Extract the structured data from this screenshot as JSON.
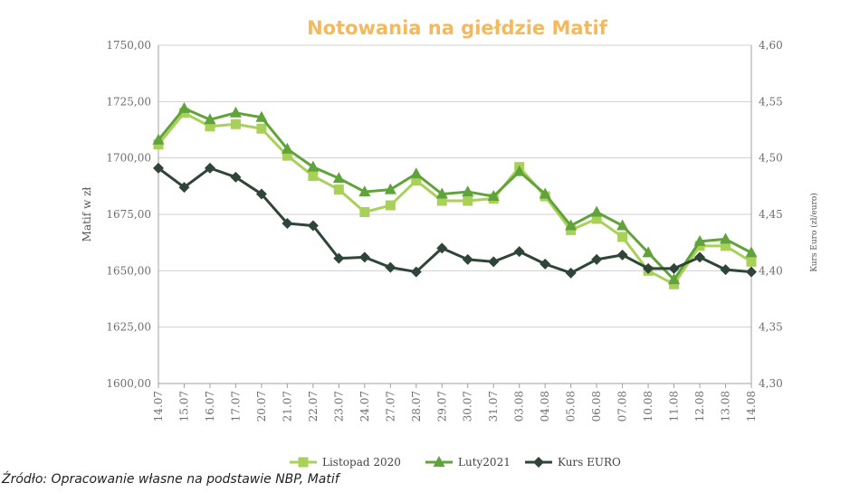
{
  "chart_data": {
    "type": "line",
    "title": "Notowania na giełdzie Matif",
    "ylabel": "Matif w zł",
    "y2label": "Kurs Euro (zł/euro)",
    "ylim": [
      1600,
      1750
    ],
    "y2lim": [
      4.3,
      4.6
    ],
    "yticks": [
      "1600,00",
      "1625,00",
      "1650,00",
      "1675,00",
      "1700,00",
      "1725,00",
      "1750,00"
    ],
    "y2ticks": [
      "4,30",
      "4,35",
      "4,40",
      "4,45",
      "4,50",
      "4,55",
      "4,60"
    ],
    "categories": [
      "14.07",
      "15.07",
      "16.07",
      "17.07",
      "20.07",
      "21.07",
      "22.07",
      "23.07",
      "24.07",
      "27.07",
      "28.07",
      "29.07",
      "30.07",
      "31.07",
      "03.08",
      "04.08",
      "05.08",
      "06.08",
      "07.08",
      "10.08",
      "11.08",
      "12.08",
      "13.08",
      "14.08"
    ],
    "series": [
      {
        "name": "Listopad 2020",
        "axis": "left",
        "color": "#a9d15a",
        "marker": "square",
        "values": [
          1706,
          1720,
          1714,
          1715,
          1713,
          1701,
          1692,
          1686,
          1676,
          1679,
          1690,
          1681,
          1681,
          1682,
          1696,
          1683,
          1668,
          1673,
          1665,
          1650,
          1644,
          1661,
          1661,
          1654
        ]
      },
      {
        "name": "Luty2021",
        "axis": "left",
        "color": "#5fa33a",
        "marker": "triangle",
        "values": [
          1708,
          1722,
          1717,
          1720,
          1718,
          1704,
          1696,
          1691,
          1685,
          1686,
          1693,
          1684,
          1685,
          1683,
          1694,
          1684,
          1670,
          1676,
          1670,
          1658,
          1646,
          1663,
          1664,
          1658
        ]
      },
      {
        "name": "Kurs EURO",
        "axis": "right",
        "color": "#2f4538",
        "marker": "diamond",
        "values": [
          4.491,
          4.474,
          4.491,
          4.483,
          4.468,
          4.442,
          4.44,
          4.411,
          4.412,
          4.403,
          4.399,
          4.42,
          4.41,
          4.408,
          4.417,
          4.406,
          4.398,
          4.41,
          4.414,
          4.402,
          4.402,
          4.412,
          4.401,
          4.399
        ]
      }
    ],
    "legend_position": "bottom"
  },
  "source_text": "Źródło: Opracowanie własne na podstawie NBP, Matif"
}
